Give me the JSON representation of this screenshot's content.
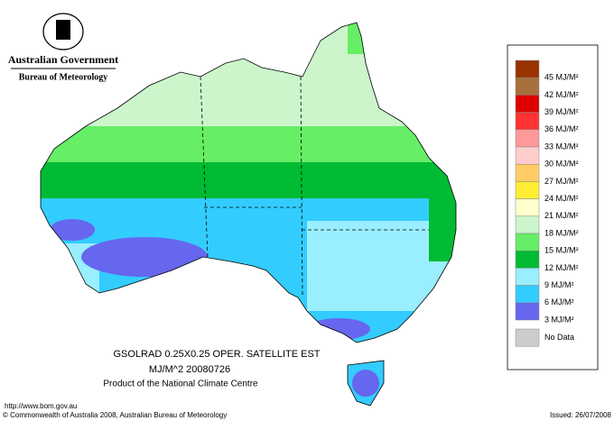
{
  "header": {
    "government": "Australian Government",
    "agency": "Bureau of Meteorology"
  },
  "legend": {
    "items": [
      {
        "label": "45 MJ/M²",
        "color": "#993300"
      },
      {
        "label": "42 MJ/M²",
        "color": "#a8703c"
      },
      {
        "label": "39 MJ/M²",
        "color": "#dd0000"
      },
      {
        "label": "36 MJ/M²",
        "color": "#ff3333"
      },
      {
        "label": "33 MJ/M²",
        "color": "#ff9999"
      },
      {
        "label": "30 MJ/M²",
        "color": "#ffcccc"
      },
      {
        "label": "27 MJ/M²",
        "color": "#ffcc66"
      },
      {
        "label": "24 MJ/M²",
        "color": "#ffee33"
      },
      {
        "label": "21 MJ/M²",
        "color": "#ffffcc"
      },
      {
        "label": "18 MJ/M²",
        "color": "#ccf5cc"
      },
      {
        "label": "15 MJ/M²",
        "color": "#66ee66"
      },
      {
        "label": "12 MJ/M²",
        "color": "#00bb33"
      },
      {
        "label": "9 MJ/M²",
        "color": "#99eeff"
      },
      {
        "label": "6 MJ/M²",
        "color": "#33ccff"
      },
      {
        "label": "3 MJ/M²",
        "color": "#6666ee"
      }
    ],
    "no_data": {
      "label": "No Data",
      "color": "#cccccc"
    }
  },
  "caption": {
    "product": "GSOLRAD    0.25X0.25 OPER. SATELLITE EST",
    "units_date": "MJ/M^2  20080726",
    "centre": "Product of the National Climate Centre"
  },
  "footer": {
    "url": "http://www.bom.gov.au",
    "copyright": "© Commonwealth of Australia 2008, Australian Bureau of Meteorology",
    "issued": "Issued: 26/07/2008"
  }
}
